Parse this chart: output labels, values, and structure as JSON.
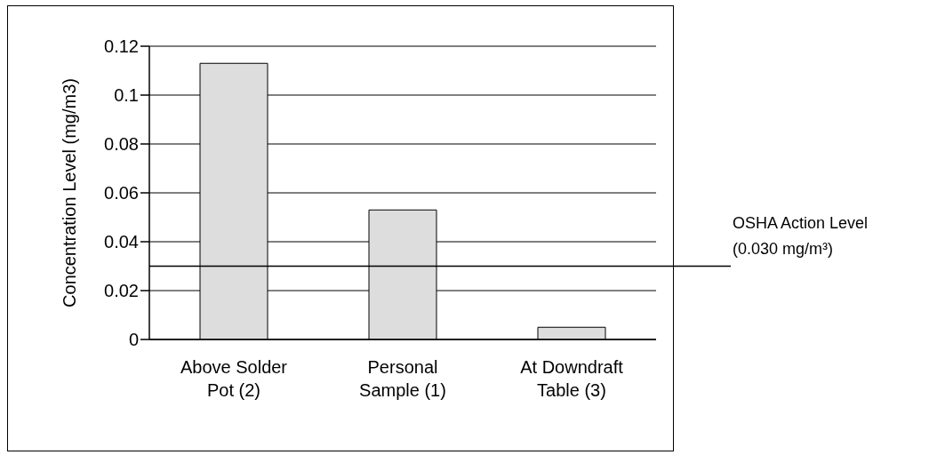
{
  "chart_data": {
    "type": "bar",
    "ylabel": "Concentration Level (mg/m3)",
    "categories": [
      "Above Solder Pot (2)",
      "Personal Sample (1)",
      "At Downdraft Table (3)"
    ],
    "values": [
      0.113,
      0.053,
      0.005
    ],
    "color": "#dddddd",
    "ylim": [
      0,
      0.12
    ],
    "yticks": [
      0,
      0.02,
      0.04,
      0.06,
      0.08,
      0.1,
      0.12
    ],
    "grid": "y",
    "ref_lines": [
      {
        "axis": "y",
        "value": 0.03,
        "label": "OSHA Action Level (0.030 mg/m³)",
        "color": "#000000"
      }
    ]
  }
}
